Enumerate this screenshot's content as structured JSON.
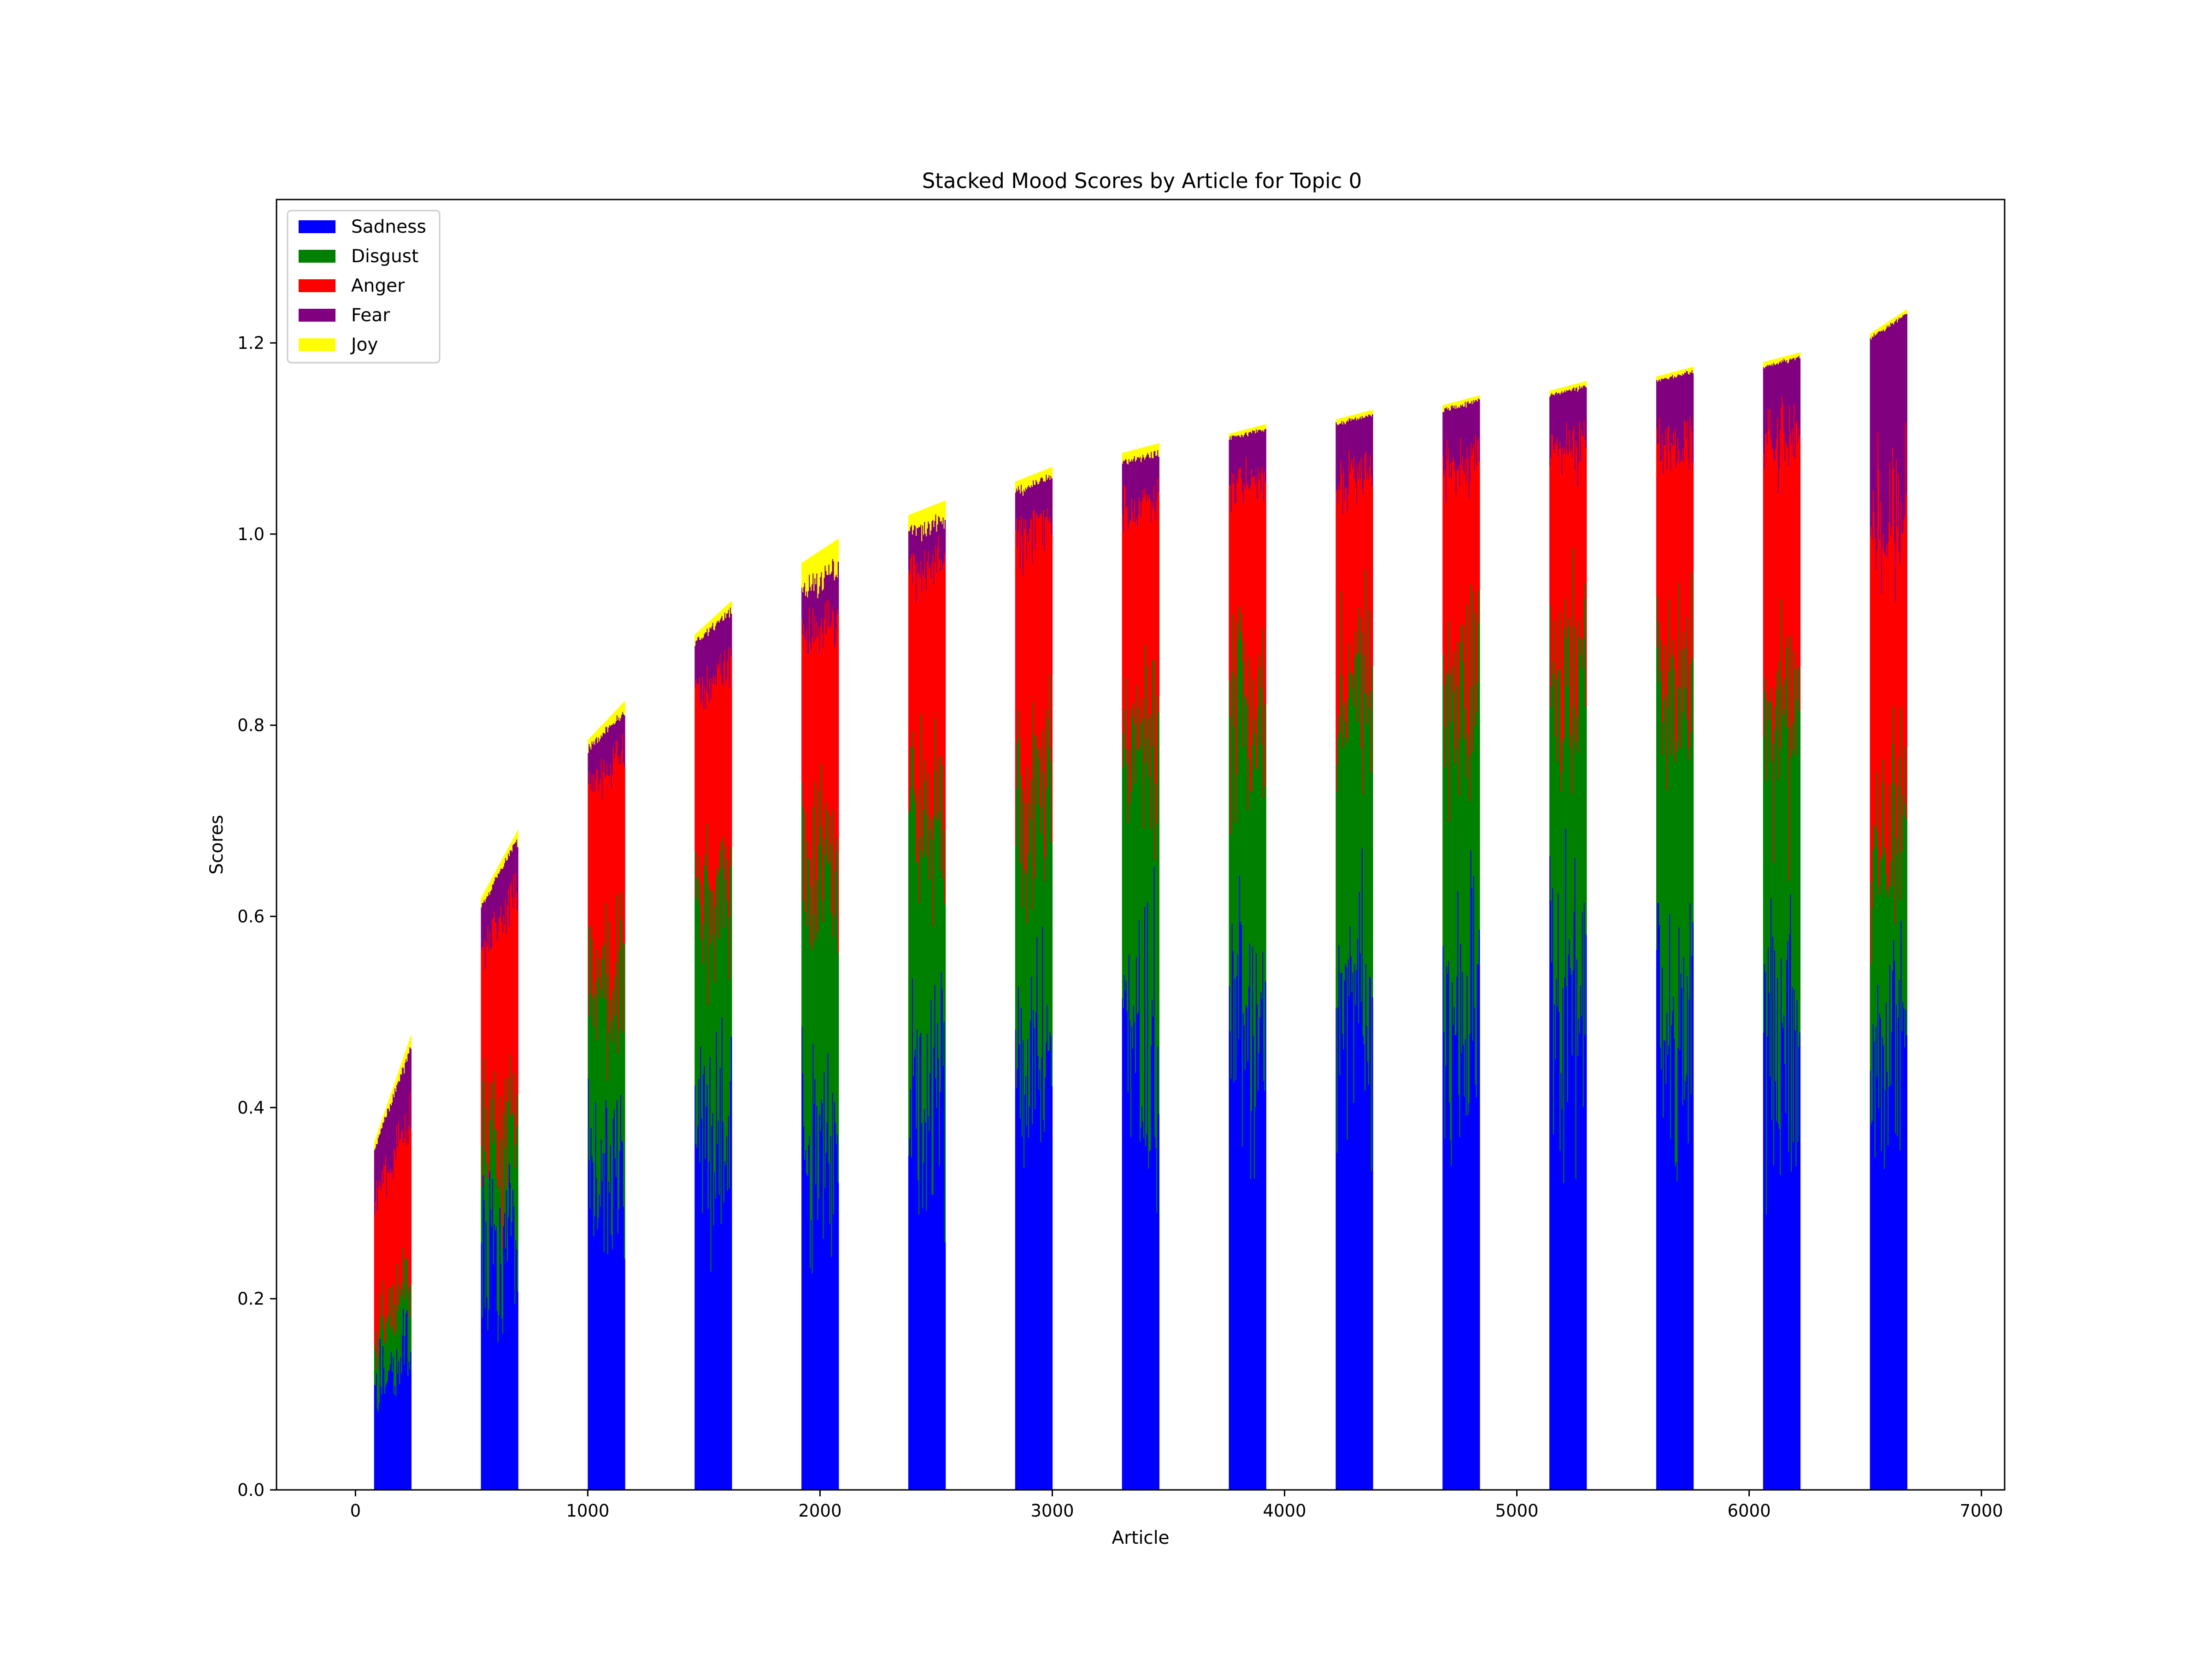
{
  "chart_data": {
    "type": "bar",
    "stacked": true,
    "title": "Stacked Mood Scores by Article for Topic 0",
    "xlabel": "Article",
    "ylabel": "Scores",
    "xlim": [
      -340,
      7100
    ],
    "ylim": [
      0,
      1.35
    ],
    "xticks": [
      0,
      1000,
      2000,
      3000,
      4000,
      5000,
      6000,
      7000
    ],
    "yticks": [
      0.0,
      0.2,
      0.4,
      0.6,
      0.8,
      1.0,
      1.2
    ],
    "xtick_labels": [
      "0",
      "1000",
      "2000",
      "3000",
      "4000",
      "5000",
      "6000",
      "7000"
    ],
    "ytick_labels": [
      "0.0",
      "0.2",
      "0.4",
      "0.6",
      "0.8",
      "1.0",
      "1.2"
    ],
    "grid": false,
    "legend_position": "top-left",
    "series": [
      {
        "name": "Sadness",
        "color": "#0000ff"
      },
      {
        "name": "Disgust",
        "color": "#008000"
      },
      {
        "name": "Anger",
        "color": "#ff0000"
      },
      {
        "name": "Fear",
        "color": "#800080"
      },
      {
        "name": "Joy",
        "color": "#ffff00"
      }
    ],
    "article_groups": [
      {
        "x_start": 80,
        "x_end": 240,
        "total_start": 0.365,
        "total_end": 0.475,
        "sadness": 0.12,
        "disgust": 0.06,
        "anger": 0.15,
        "fear": 0.06,
        "joy": 0.01
      },
      {
        "x_start": 540,
        "x_end": 700,
        "total_start": 0.62,
        "total_end": 0.69,
        "sadness": 0.25,
        "disgust": 0.12,
        "anger": 0.22,
        "fear": 0.05,
        "joy": 0.01
      },
      {
        "x_start": 1000,
        "x_end": 1160,
        "total_start": 0.785,
        "total_end": 0.825,
        "sadness": 0.33,
        "disgust": 0.2,
        "anger": 0.22,
        "fear": 0.04,
        "joy": 0.01
      },
      {
        "x_start": 1460,
        "x_end": 1620,
        "total_start": 0.895,
        "total_end": 0.93,
        "sadness": 0.37,
        "disgust": 0.25,
        "anger": 0.22,
        "fear": 0.06,
        "joy": 0.01
      },
      {
        "x_start": 1920,
        "x_end": 2080,
        "total_start": 0.97,
        "total_end": 0.995,
        "sadness": 0.35,
        "disgust": 0.3,
        "anger": 0.25,
        "fear": 0.05,
        "joy": 0.03
      },
      {
        "x_start": 2380,
        "x_end": 2540,
        "total_start": 1.02,
        "total_end": 1.035,
        "sadness": 0.4,
        "disgust": 0.3,
        "anger": 0.25,
        "fear": 0.04,
        "joy": 0.02
      },
      {
        "x_start": 2840,
        "x_end": 3000,
        "total_start": 1.055,
        "total_end": 1.07,
        "sadness": 0.45,
        "disgust": 0.3,
        "anger": 0.25,
        "fear": 0.05,
        "joy": 0.01
      },
      {
        "x_start": 3300,
        "x_end": 3460,
        "total_start": 1.085,
        "total_end": 1.095,
        "sadness": 0.47,
        "disgust": 0.32,
        "anger": 0.24,
        "fear": 0.05,
        "joy": 0.01
      },
      {
        "x_start": 3760,
        "x_end": 3920,
        "total_start": 1.105,
        "total_end": 1.115,
        "sadness": 0.48,
        "disgust": 0.33,
        "anger": 0.24,
        "fear": 0.05,
        "joy": 0.005
      },
      {
        "x_start": 4220,
        "x_end": 4380,
        "total_start": 1.12,
        "total_end": 1.13,
        "sadness": 0.49,
        "disgust": 0.34,
        "anger": 0.23,
        "fear": 0.06,
        "joy": 0.005
      },
      {
        "x_start": 4680,
        "x_end": 4840,
        "total_start": 1.135,
        "total_end": 1.145,
        "sadness": 0.5,
        "disgust": 0.35,
        "anger": 0.23,
        "fear": 0.06,
        "joy": 0.005
      },
      {
        "x_start": 5140,
        "x_end": 5300,
        "total_start": 1.15,
        "total_end": 1.16,
        "sadness": 0.5,
        "disgust": 0.36,
        "anger": 0.23,
        "fear": 0.06,
        "joy": 0.005
      },
      {
        "x_start": 5600,
        "x_end": 5760,
        "total_start": 1.165,
        "total_end": 1.175,
        "sadness": 0.49,
        "disgust": 0.36,
        "anger": 0.25,
        "fear": 0.07,
        "joy": 0.005
      },
      {
        "x_start": 6060,
        "x_end": 6220,
        "total_start": 1.18,
        "total_end": 1.19,
        "sadness": 0.48,
        "disgust": 0.34,
        "anger": 0.28,
        "fear": 0.08,
        "joy": 0.005
      },
      {
        "x_start": 6520,
        "x_end": 6680,
        "total_start": 1.21,
        "total_end": 1.235,
        "sadness": 0.45,
        "disgust": 0.22,
        "anger": 0.36,
        "fear": 0.2,
        "joy": 0.005
      }
    ]
  }
}
